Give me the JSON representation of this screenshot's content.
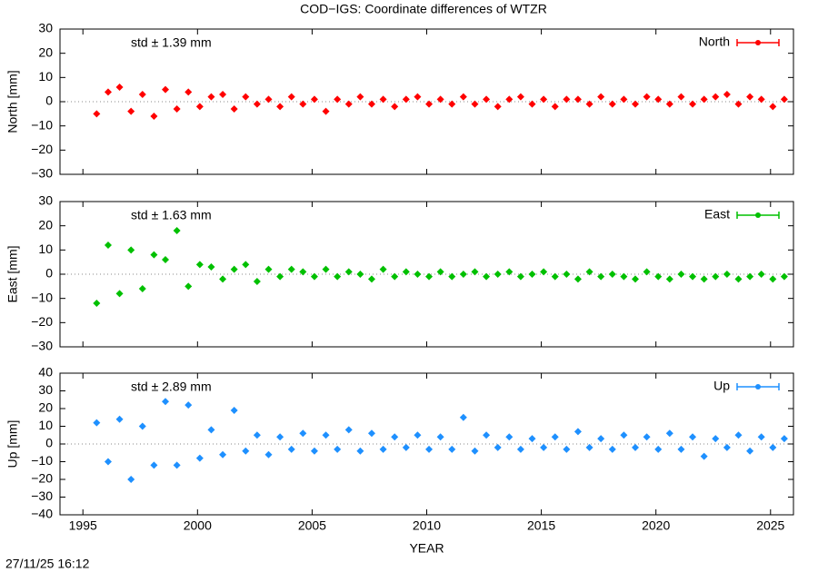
{
  "title": "COD−IGS: Coordinate differences of WTZR",
  "footer": "27/11/25 16:12",
  "chart_data": [
    {
      "type": "scatter",
      "ylabel": "North [mm]",
      "annotation": "std ± 1.39 mm",
      "legend": "top right",
      "xlim": [
        1994,
        2026
      ],
      "xticks": [
        1995,
        2000,
        2005,
        2010,
        2015,
        2020,
        2025
      ],
      "ylim": [
        -30,
        30
      ],
      "yticks": [
        {
          "value": -30,
          "label": "−30"
        },
        {
          "value": -20,
          "label": "−20"
        },
        {
          "value": -10,
          "label": "−10"
        },
        0,
        10,
        20,
        30
      ],
      "x": [
        1995.6,
        1996.1,
        1996.6,
        1997.1,
        1997.6,
        1998.1,
        1998.6,
        1999.1,
        1999.6,
        2000.1,
        2000.6,
        2001.1,
        2001.6,
        2002.1,
        2002.6,
        2003.1,
        2003.6,
        2004.1,
        2004.6,
        2005.1,
        2005.6,
        2006.1,
        2006.6,
        2007.1,
        2007.6,
        2008.1,
        2008.6,
        2009.1,
        2009.6,
        2010.1,
        2010.6,
        2011.1,
        2011.6,
        2012.1,
        2012.6,
        2013.1,
        2013.6,
        2014.1,
        2014.6,
        2015.1,
        2015.6,
        2016.1,
        2016.6,
        2017.1,
        2017.6,
        2018.1,
        2018.6,
        2019.1,
        2019.6,
        2020.1,
        2020.6,
        2021.1,
        2021.6,
        2022.1,
        2022.6,
        2023.1,
        2023.6,
        2024.1,
        2024.6,
        2025.1,
        2025.6
      ],
      "series": [
        {
          "name": "North",
          "color": "#ff0000",
          "values": [
            -5,
            4,
            6,
            -4,
            3,
            -6,
            5,
            -3,
            4,
            -2,
            2,
            3,
            -3,
            2,
            -1,
            1,
            -2,
            2,
            -1,
            1,
            -4,
            1,
            -1,
            2,
            -1,
            1,
            -2,
            1,
            2,
            -1,
            1,
            -1,
            2,
            -1,
            1,
            -2,
            1,
            2,
            -1,
            1,
            -2,
            1,
            1,
            -1,
            2,
            -1,
            1,
            -1,
            2,
            1,
            -1,
            2,
            -1,
            1,
            2,
            3,
            -1,
            2,
            1,
            -2,
            1
          ]
        }
      ]
    },
    {
      "type": "scatter",
      "ylabel": "East [mm]",
      "annotation": "std ± 1.63 mm",
      "legend": "top right",
      "xlim": [
        1994,
        2026
      ],
      "xticks": [
        1995,
        2000,
        2005,
        2010,
        2015,
        2020,
        2025
      ],
      "ylim": [
        -30,
        30
      ],
      "yticks": [
        {
          "value": -30,
          "label": "−30"
        },
        {
          "value": -20,
          "label": "−20"
        },
        {
          "value": -10,
          "label": "−10"
        },
        0,
        10,
        20,
        30
      ],
      "x": [
        1995.6,
        1996.1,
        1996.6,
        1997.1,
        1997.6,
        1998.1,
        1998.6,
        1999.1,
        1999.6,
        2000.1,
        2000.6,
        2001.1,
        2001.6,
        2002.1,
        2002.6,
        2003.1,
        2003.6,
        2004.1,
        2004.6,
        2005.1,
        2005.6,
        2006.1,
        2006.6,
        2007.1,
        2007.6,
        2008.1,
        2008.6,
        2009.1,
        2009.6,
        2010.1,
        2010.6,
        2011.1,
        2011.6,
        2012.1,
        2012.6,
        2013.1,
        2013.6,
        2014.1,
        2014.6,
        2015.1,
        2015.6,
        2016.1,
        2016.6,
        2017.1,
        2017.6,
        2018.1,
        2018.6,
        2019.1,
        2019.6,
        2020.1,
        2020.6,
        2021.1,
        2021.6,
        2022.1,
        2022.6,
        2023.1,
        2023.6,
        2024.1,
        2024.6,
        2025.1,
        2025.6
      ],
      "series": [
        {
          "name": "East",
          "color": "#00c000",
          "values": [
            -12,
            12,
            -8,
            10,
            -6,
            8,
            6,
            18,
            -5,
            4,
            3,
            -2,
            2,
            4,
            -3,
            2,
            -1,
            2,
            1,
            -1,
            2,
            -1,
            1,
            0,
            -2,
            2,
            -1,
            1,
            0,
            -1,
            1,
            -1,
            0,
            1,
            -1,
            0,
            1,
            -1,
            0,
            1,
            -1,
            0,
            -2,
            1,
            -1,
            0,
            -1,
            -2,
            1,
            -1,
            -2,
            0,
            -1,
            -2,
            -1,
            0,
            -2,
            -1,
            0,
            -2,
            -1
          ]
        }
      ]
    },
    {
      "type": "scatter",
      "ylabel": "Up [mm]",
      "annotation": "std ± 2.89 mm",
      "legend": "top right",
      "xlabel": "YEAR",
      "xlim": [
        1994,
        2026
      ],
      "xticks": [
        1995,
        2000,
        2005,
        2010,
        2015,
        2020,
        2025
      ],
      "ylim": [
        -40,
        40
      ],
      "yticks": [
        {
          "value": -40,
          "label": "−40"
        },
        {
          "value": -30,
          "label": "−30"
        },
        {
          "value": -20,
          "label": "−20"
        },
        {
          "value": -10,
          "label": "−10"
        },
        0,
        10,
        20,
        30,
        40
      ],
      "x": [
        1995.6,
        1996.1,
        1996.6,
        1997.1,
        1997.6,
        1998.1,
        1998.6,
        1999.1,
        1999.6,
        2000.1,
        2000.6,
        2001.1,
        2001.6,
        2002.1,
        2002.6,
        2003.1,
        2003.6,
        2004.1,
        2004.6,
        2005.1,
        2005.6,
        2006.1,
        2006.6,
        2007.1,
        2007.6,
        2008.1,
        2008.6,
        2009.1,
        2009.6,
        2010.1,
        2010.6,
        2011.1,
        2011.6,
        2012.1,
        2012.6,
        2013.1,
        2013.6,
        2014.1,
        2014.6,
        2015.1,
        2015.6,
        2016.1,
        2016.6,
        2017.1,
        2017.6,
        2018.1,
        2018.6,
        2019.1,
        2019.6,
        2020.1,
        2020.6,
        2021.1,
        2021.6,
        2022.1,
        2022.6,
        2023.1,
        2023.6,
        2024.1,
        2024.6,
        2025.1,
        2025.6
      ],
      "series": [
        {
          "name": "Up",
          "color": "#1e90ff",
          "values": [
            12,
            -10,
            14,
            -20,
            10,
            -12,
            24,
            -12,
            22,
            -8,
            8,
            -6,
            19,
            -4,
            5,
            -6,
            4,
            -3,
            6,
            -4,
            5,
            -3,
            8,
            -4,
            6,
            -3,
            4,
            -2,
            5,
            -3,
            4,
            -3,
            15,
            -4,
            5,
            -2,
            4,
            -3,
            3,
            -2,
            4,
            -3,
            7,
            -2,
            3,
            -3,
            5,
            -2,
            4,
            -3,
            6,
            -3,
            4,
            -7,
            3,
            -2,
            5,
            -4,
            4,
            -2,
            3
          ]
        }
      ]
    }
  ]
}
